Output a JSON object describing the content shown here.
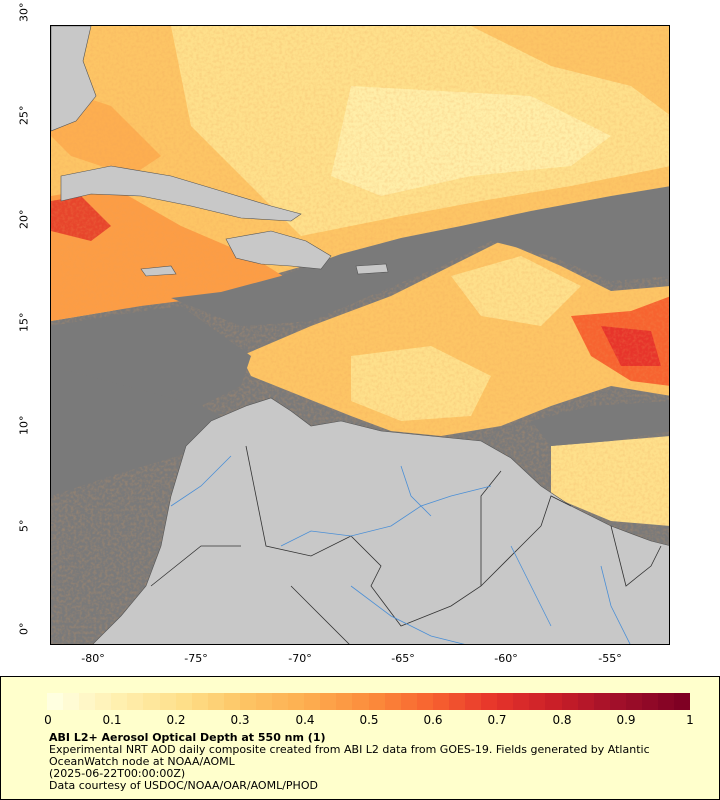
{
  "map": {
    "lat_ticks": [
      "30°",
      "25°",
      "20°",
      "15°",
      "10°",
      "5°",
      "0°"
    ],
    "lon_ticks": [
      "-80°",
      "-75°",
      "-70°",
      "-65°",
      "-60°",
      "-55°"
    ],
    "extent": {
      "lon_min": -82,
      "lon_max": -52,
      "lat_min": 0,
      "lat_max": 30
    },
    "colors": {
      "no_data": "#7a7a7a",
      "land": "#c8c8c8",
      "boundary": "#555555",
      "river": "#4b8fd6"
    }
  },
  "legend": {
    "title": "ABI L2+ Aerosol Optical Depth at 550 nm (1)",
    "line1": "Experimental NRT AOD daily composite created from ABI L2 data from GOES-19. Fields generated by Atlantic OceanWatch node at NOAA/AOML",
    "line2": "(2025-06-22T00:00:00Z)",
    "line3": "Data courtesy of USDOC/NOAA/OAR/AOML/PHOD",
    "ticks": [
      "0",
      "0.1",
      "0.2",
      "0.3",
      "0.4",
      "0.5",
      "0.6",
      "0.7",
      "0.8",
      "0.9",
      "1"
    ],
    "scale_colors": [
      "#ffffe0",
      "#fff0b0",
      "#fee08b",
      "#fdc565",
      "#fdae50",
      "#fc8d3c",
      "#f76330",
      "#e7342b",
      "#c81e28",
      "#a00f2a",
      "#7f0023"
    ]
  }
}
